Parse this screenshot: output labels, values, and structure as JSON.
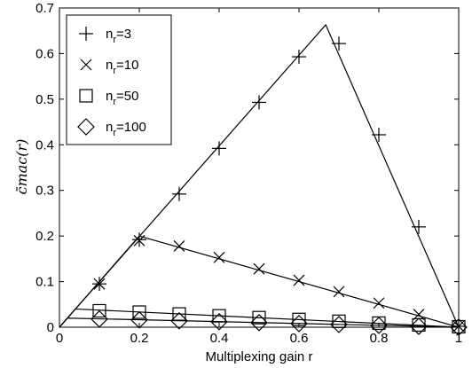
{
  "chart_data": {
    "type": "line",
    "xlabel": "Multiplexing gain r",
    "ylabel": "c̄mac(r)",
    "xlim": [
      0,
      1
    ],
    "ylim": [
      0,
      0.7
    ],
    "xticks": [
      0,
      0.2,
      0.4,
      0.6,
      0.8,
      1
    ],
    "yticks": [
      0,
      0.1,
      0.2,
      0.3,
      0.4,
      0.5,
      0.6,
      0.7
    ],
    "xtick_labels": [
      "0",
      "0.2",
      "0.4",
      "0.6",
      "0.8",
      "1"
    ],
    "ytick_labels": [
      "0",
      "0.1",
      "0.2",
      "0.3",
      "0.4",
      "0.5",
      "0.6",
      "0.7"
    ],
    "grid": false,
    "legend_position": "top-left",
    "series": [
      {
        "name": "n_r=3",
        "legend_main": "n",
        "legend_sub": "r",
        "legend_rest": "=3",
        "marker": "plus",
        "line": {
          "x": [
            0,
            0.667,
            1
          ],
          "y": [
            0,
            0.663,
            0
          ]
        },
        "points": {
          "x": [
            0.1,
            0.2,
            0.3,
            0.4,
            0.5,
            0.6,
            0.7,
            0.8,
            0.9,
            1.0
          ],
          "y": [
            0.095,
            0.192,
            0.292,
            0.392,
            0.493,
            0.593,
            0.622,
            0.422,
            0.22,
            0.002
          ]
        }
      },
      {
        "name": "n_r=10",
        "legend_main": "n",
        "legend_sub": "r",
        "legend_rest": "=10",
        "marker": "x",
        "line": {
          "x": [
            0,
            0.2,
            1
          ],
          "y": [
            0,
            0.2,
            0
          ]
        },
        "points": {
          "x": [
            0.1,
            0.2,
            0.3,
            0.4,
            0.5,
            0.6,
            0.7,
            0.8,
            0.9,
            1.0
          ],
          "y": [
            0.095,
            0.19,
            0.178,
            0.153,
            0.128,
            0.103,
            0.078,
            0.053,
            0.028,
            0.002
          ]
        }
      },
      {
        "name": "n_r=50",
        "legend_main": "n",
        "legend_sub": "r",
        "legend_rest": "=50",
        "marker": "square",
        "line": {
          "x": [
            0,
            0.04,
            1
          ],
          "y": [
            0,
            0.04,
            0
          ]
        },
        "points": {
          "x": [
            0.1,
            0.2,
            0.3,
            0.4,
            0.5,
            0.6,
            0.7,
            0.8,
            0.9,
            1.0
          ],
          "y": [
            0.036,
            0.033,
            0.029,
            0.025,
            0.021,
            0.017,
            0.013,
            0.009,
            0.005,
            0.001
          ]
        }
      },
      {
        "name": "n_r=100",
        "legend_main": "n",
        "legend_sub": "r",
        "legend_rest": "=100",
        "marker": "diamond",
        "line": {
          "x": [
            0,
            0.02,
            1
          ],
          "y": [
            0,
            0.02,
            0
          ]
        },
        "points": {
          "x": [
            0.1,
            0.2,
            0.3,
            0.4,
            0.5,
            0.6,
            0.7,
            0.8,
            0.9,
            1.0
          ],
          "y": [
            0.018,
            0.016,
            0.014,
            0.012,
            0.01,
            0.008,
            0.006,
            0.004,
            0.002,
            0.0
          ]
        }
      }
    ]
  }
}
